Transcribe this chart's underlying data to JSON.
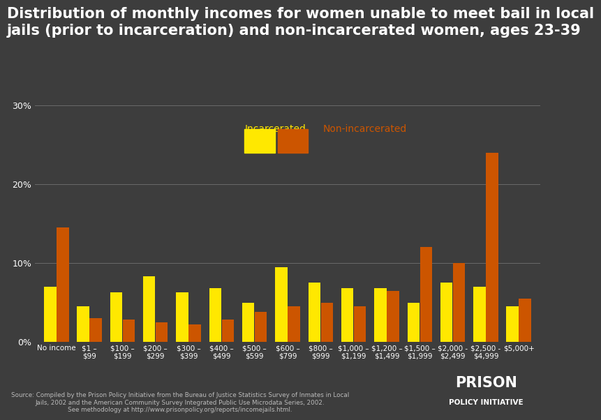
{
  "title": "Distribution of monthly incomes for women unable to meet bail in local\njails (prior to incarceration) and non-incarcerated women, ages 23-39",
  "categories": [
    "No income",
    "$1 –\n$99",
    "$100 –\n$199",
    "$200 –\n$299",
    "$300 –\n$399",
    "$400 –\n$499",
    "$500 –\n$599",
    "$600 –\n$799",
    "$800 –\n$999",
    "$1,000 –\n$1,199",
    "$1,200 –\n$1,499",
    "$1,500 –\n$1,999",
    "$2,000 -\n$2,499",
    "$2,500 -\n$4,999",
    "$5,000+"
  ],
  "incarcerated": [
    7.0,
    4.5,
    6.3,
    8.3,
    6.3,
    6.8,
    5.0,
    9.5,
    7.5,
    6.8,
    6.8,
    5.0,
    7.5,
    7.0,
    4.5
  ],
  "non_incarcerated": [
    14.5,
    3.0,
    2.8,
    2.5,
    2.2,
    2.8,
    3.8,
    4.5,
    5.0,
    4.5,
    6.5,
    12.0,
    10.0,
    24.0,
    5.5
  ],
  "incarcerated_color": "#FFE800",
  "non_incarcerated_color": "#CC5500",
  "background_color": "#3d3d3d",
  "text_color": "#ffffff",
  "grid_color": "#888888",
  "ylim": [
    0,
    30
  ],
  "yticks": [
    0,
    10,
    20,
    30
  ],
  "source_text": "Source: Compiled by the Prison Policy Initiative from the Bureau of Justice Statistics Survey of Inmates in Local\nJails, 2002 and the American Community Survey Integrated Public Use Microdata Series, 2002.\nSee methodology at http://www.prisonpolicy.org/reports/incomejails.html.",
  "legend_incarcerated_label": "Incarcerated",
  "legend_non_incarcerated_label": "Non-incarcerated",
  "watermark_line1": "PRISON",
  "watermark_line2": "POLICY INITIATIVE",
  "title_fontsize": 15,
  "axis_label_fontsize": 7.5,
  "legend_fontsize": 10
}
